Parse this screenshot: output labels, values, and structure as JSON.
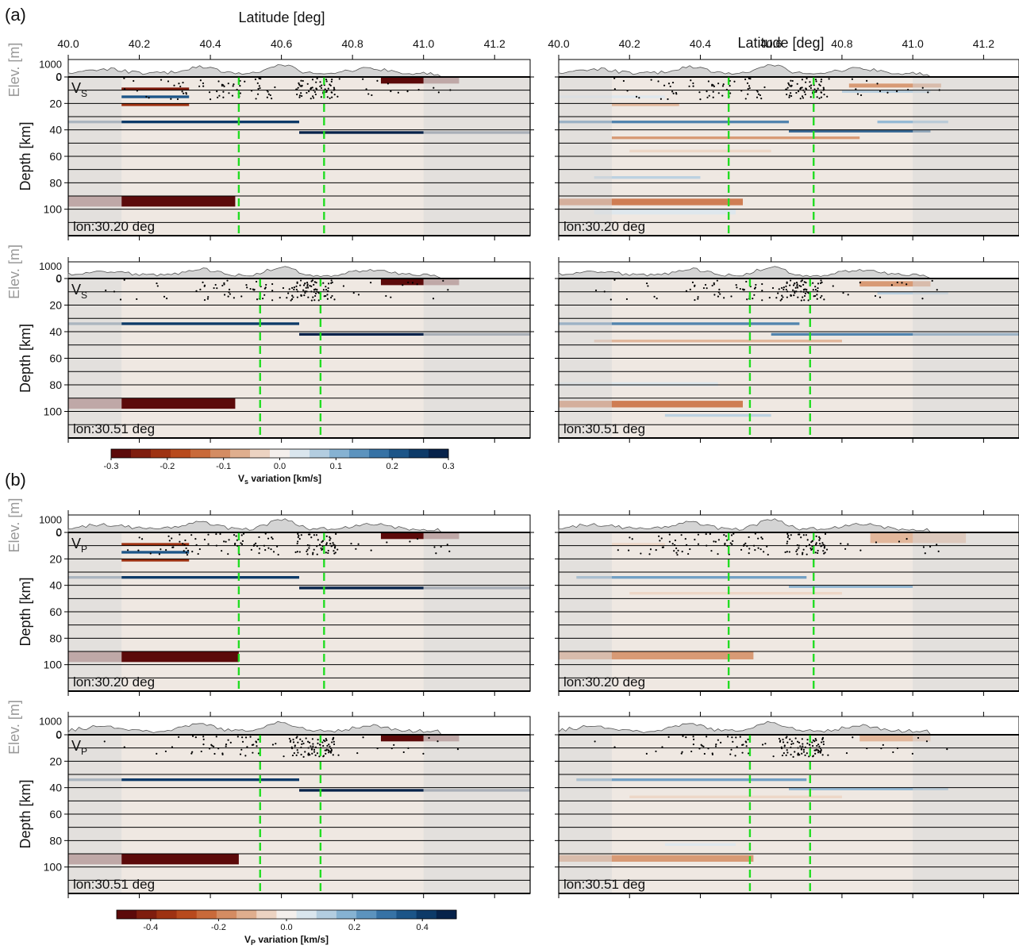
{
  "labels": {
    "panel_a": "(a)",
    "panel_b": "(b)",
    "x_axis_title": "Latitude [deg]",
    "depth_axis_title": "Depth [km]",
    "elev_axis_title": "Elev. [m]"
  },
  "chart_data": {
    "type": "heatmap",
    "x_axis": {
      "label": "Latitude [deg]",
      "range": [
        40.0,
        41.3
      ],
      "ticks": [
        "40.0",
        "40.2",
        "40.4",
        "40.6",
        "40.8",
        "41.0",
        "41.2"
      ]
    },
    "depth_axis": {
      "label": "Depth [km]",
      "range": [
        0,
        120
      ],
      "ticks": [
        "0",
        "20",
        "40",
        "60",
        "80",
        "100"
      ]
    },
    "elevation_axis": {
      "label": "Elev. [m]",
      "ticks": [
        "1000",
        "0"
      ]
    },
    "layer_interfaces_km": [
      10,
      20,
      30,
      40,
      50,
      60,
      70,
      80,
      90,
      100,
      110,
      120
    ],
    "colorbars": [
      {
        "parameter": "Vs",
        "label_main": "V",
        "label_sub": "s",
        "label_rest": " variation [km/s]",
        "range": [
          -0.3,
          0.3
        ],
        "ticks": [
          "-0.3",
          "-0.2",
          "-0.1",
          "0.0",
          "0.1",
          "0.2",
          "0.3"
        ]
      },
      {
        "parameter": "Vp",
        "label_main": "V",
        "label_sub": "P",
        "label_rest": " variation [km/s]",
        "range": [
          -0.5,
          0.5
        ],
        "ticks": [
          "-0.4",
          "-0.2",
          "0.0",
          "0.2",
          "0.4"
        ]
      }
    ],
    "panels": [
      {
        "group": "(a)",
        "parameter_main": "V",
        "parameter_sub": "S",
        "profile": "lon:30.20 deg",
        "fault_lines_lat": [
          40.48,
          40.72
        ],
        "true_model": [
          {
            "depth": [
              8,
              10
            ],
            "lat": [
              40.15,
              40.34
            ],
            "value": -0.25
          },
          {
            "depth": [
              14,
              16
            ],
            "lat": [
              40.15,
              40.34
            ],
            "value": 0.22
          },
          {
            "depth": [
              20,
              22
            ],
            "lat": [
              40.15,
              40.34
            ],
            "value": -0.22
          },
          {
            "depth": [
              0,
              5
            ],
            "lat": [
              40.88,
              41.0
            ],
            "value": -0.3
          },
          {
            "depth": [
              0,
              5
            ],
            "lat": [
              41.0,
              41.1
            ],
            "value": -0.3,
            "faded": true
          },
          {
            "depth": [
              33,
              35
            ],
            "lat": [
              40.15,
              40.65
            ],
            "value": 0.25
          },
          {
            "depth": [
              41,
              43
            ],
            "lat": [
              40.65,
              41.0
            ],
            "value": 0.3
          },
          {
            "depth": [
              33,
              35
            ],
            "lat": [
              40.0,
              40.15
            ],
            "value": 0.25,
            "faded": true
          },
          {
            "depth": [
              41,
              43
            ],
            "lat": [
              41.0,
              41.3
            ],
            "value": 0.3,
            "faded": true
          },
          {
            "depth": [
              90,
              98
            ],
            "lat": [
              40.15,
              40.47
            ],
            "value": -0.3
          },
          {
            "depth": [
              90,
              98
            ],
            "lat": [
              40.0,
              40.15
            ],
            "value": -0.3,
            "faded": true
          }
        ],
        "recovered_model": [
          {
            "depth": [
              5,
              8
            ],
            "lat": [
              40.82,
              41.08
            ],
            "value": -0.12
          },
          {
            "depth": [
              10,
              12
            ],
            "lat": [
              40.8,
              41.05
            ],
            "value": 0.08
          },
          {
            "depth": [
              14,
              16
            ],
            "lat": [
              40.0,
              40.3
            ],
            "value": 0.05
          },
          {
            "depth": [
              20,
              22
            ],
            "lat": [
              40.15,
              40.34
            ],
            "value": -0.08
          },
          {
            "depth": [
              33,
              35
            ],
            "lat": [
              40.0,
              40.65
            ],
            "value": 0.2
          },
          {
            "depth": [
              33,
              35
            ],
            "lat": [
              40.9,
              41.1
            ],
            "value": 0.1
          },
          {
            "depth": [
              40,
              42
            ],
            "lat": [
              40.65,
              41.05
            ],
            "value": 0.22
          },
          {
            "depth": [
              45,
              47
            ],
            "lat": [
              40.15,
              40.85
            ],
            "value": -0.1
          },
          {
            "depth": [
              55,
              57
            ],
            "lat": [
              40.2,
              40.6
            ],
            "value": -0.05
          },
          {
            "depth": [
              75,
              77
            ],
            "lat": [
              40.1,
              40.4
            ],
            "value": 0.06
          },
          {
            "depth": [
              92,
              97
            ],
            "lat": [
              40.0,
              40.52
            ],
            "value": -0.15
          },
          {
            "depth": [
              100,
              104
            ],
            "lat": [
              40.1,
              40.5
            ],
            "value": 0.04
          }
        ]
      },
      {
        "group": "(a)",
        "parameter_main": "V",
        "parameter_sub": "S",
        "profile": "lon:30.51 deg",
        "fault_lines_lat": [
          40.54,
          40.71
        ],
        "true_model": [
          {
            "depth": [
              0,
              5
            ],
            "lat": [
              40.88,
              41.0
            ],
            "value": -0.3
          },
          {
            "depth": [
              0,
              5
            ],
            "lat": [
              41.0,
              41.1
            ],
            "value": -0.3,
            "faded": true
          },
          {
            "depth": [
              33,
              35
            ],
            "lat": [
              40.15,
              40.65
            ],
            "value": 0.25
          },
          {
            "depth": [
              41,
              43
            ],
            "lat": [
              40.65,
              41.0
            ],
            "value": 0.3
          },
          {
            "depth": [
              33,
              35
            ],
            "lat": [
              40.0,
              40.15
            ],
            "value": 0.25,
            "faded": true
          },
          {
            "depth": [
              41,
              43
            ],
            "lat": [
              41.0,
              41.3
            ],
            "value": 0.3,
            "faded": true
          },
          {
            "depth": [
              90,
              98
            ],
            "lat": [
              40.15,
              40.47
            ],
            "value": -0.3
          },
          {
            "depth": [
              90,
              98
            ],
            "lat": [
              40.0,
              40.15
            ],
            "value": -0.3,
            "faded": true
          }
        ],
        "recovered_model": [
          {
            "depth": [
              2,
              6
            ],
            "lat": [
              40.85,
              41.05
            ],
            "value": -0.1
          },
          {
            "depth": [
              10,
              12
            ],
            "lat": [
              40.9,
              41.1
            ],
            "value": 0.06
          },
          {
            "depth": [
              33,
              35
            ],
            "lat": [
              40.0,
              40.68
            ],
            "value": 0.2
          },
          {
            "depth": [
              41,
              43
            ],
            "lat": [
              40.6,
              41.3
            ],
            "value": 0.18
          },
          {
            "depth": [
              46,
              48
            ],
            "lat": [
              40.1,
              40.8
            ],
            "value": -0.08
          },
          {
            "depth": [
              78,
              81
            ],
            "lat": [
              40.0,
              40.45
            ],
            "value": 0.05
          },
          {
            "depth": [
              92,
              97
            ],
            "lat": [
              40.0,
              40.52
            ],
            "value": -0.14
          },
          {
            "depth": [
              102,
              104
            ],
            "lat": [
              40.3,
              40.6
            ],
            "value": 0.06
          }
        ]
      },
      {
        "group": "(b)",
        "parameter_main": "V",
        "parameter_sub": "P",
        "profile": "lon:30.20 deg",
        "fault_lines_lat": [
          40.48,
          40.72
        ],
        "true_model": [
          {
            "depth": [
              8,
              10
            ],
            "lat": [
              40.15,
              40.34
            ],
            "value": -0.4
          },
          {
            "depth": [
              14,
              16
            ],
            "lat": [
              40.15,
              40.34
            ],
            "value": 0.35
          },
          {
            "depth": [
              20,
              22
            ],
            "lat": [
              40.15,
              40.34
            ],
            "value": -0.35
          },
          {
            "depth": [
              0,
              5
            ],
            "lat": [
              40.88,
              41.0
            ],
            "value": -0.5
          },
          {
            "depth": [
              0,
              5
            ],
            "lat": [
              41.0,
              41.1
            ],
            "value": -0.5,
            "faded": true
          },
          {
            "depth": [
              33,
              35
            ],
            "lat": [
              40.15,
              40.65
            ],
            "value": 0.45
          },
          {
            "depth": [
              41,
              43
            ],
            "lat": [
              40.65,
              41.0
            ],
            "value": 0.5
          },
          {
            "depth": [
              33,
              35
            ],
            "lat": [
              40.0,
              40.15
            ],
            "value": 0.45,
            "faded": true
          },
          {
            "depth": [
              41,
              43
            ],
            "lat": [
              41.0,
              41.3
            ],
            "value": 0.5,
            "faded": true
          },
          {
            "depth": [
              90,
              98
            ],
            "lat": [
              40.15,
              40.48
            ],
            "value": -0.5
          },
          {
            "depth": [
              90,
              98
            ],
            "lat": [
              40.0,
              40.15
            ],
            "value": -0.5,
            "faded": true
          }
        ],
        "recovered_model": [
          {
            "depth": [
              0,
              8
            ],
            "lat": [
              40.88,
              41.15
            ],
            "value": -0.12
          },
          {
            "depth": [
              8,
              10
            ],
            "lat": [
              40.15,
              40.3
            ],
            "value": -0.06
          },
          {
            "depth": [
              33,
              35
            ],
            "lat": [
              40.05,
              40.7
            ],
            "value": 0.22
          },
          {
            "depth": [
              40,
              42
            ],
            "lat": [
              40.65,
              41.0
            ],
            "value": 0.18
          },
          {
            "depth": [
              45,
              47
            ],
            "lat": [
              40.2,
              40.8
            ],
            "value": -0.06
          },
          {
            "depth": [
              90,
              96
            ],
            "lat": [
              40.0,
              40.55
            ],
            "value": -0.16
          }
        ]
      },
      {
        "group": "(b)",
        "parameter_main": "V",
        "parameter_sub": "P",
        "profile": "lon:30.51 deg",
        "fault_lines_lat": [
          40.54,
          40.71
        ],
        "true_model": [
          {
            "depth": [
              0,
              5
            ],
            "lat": [
              40.88,
              41.0
            ],
            "value": -0.5
          },
          {
            "depth": [
              0,
              5
            ],
            "lat": [
              41.0,
              41.1
            ],
            "value": -0.5,
            "faded": true
          },
          {
            "depth": [
              33,
              35
            ],
            "lat": [
              40.15,
              40.65
            ],
            "value": 0.45
          },
          {
            "depth": [
              41,
              43
            ],
            "lat": [
              40.65,
              41.0
            ],
            "value": 0.5
          },
          {
            "depth": [
              33,
              35
            ],
            "lat": [
              40.0,
              40.15
            ],
            "value": 0.45,
            "faded": true
          },
          {
            "depth": [
              41,
              43
            ],
            "lat": [
              41.0,
              41.3
            ],
            "value": 0.5,
            "faded": true
          },
          {
            "depth": [
              90,
              98
            ],
            "lat": [
              40.15,
              40.48
            ],
            "value": -0.5
          },
          {
            "depth": [
              90,
              98
            ],
            "lat": [
              40.0,
              40.15
            ],
            "value": -0.5,
            "faded": true
          }
        ],
        "recovered_model": [
          {
            "depth": [
              0,
              5
            ],
            "lat": [
              40.85,
              41.05
            ],
            "value": -0.1
          },
          {
            "depth": [
              33,
              35
            ],
            "lat": [
              40.05,
              40.7
            ],
            "value": 0.22
          },
          {
            "depth": [
              40,
              42
            ],
            "lat": [
              40.65,
              41.1
            ],
            "value": 0.16
          },
          {
            "depth": [
              46,
              48
            ],
            "lat": [
              40.2,
              40.8
            ],
            "value": -0.06
          },
          {
            "depth": [
              82,
              84
            ],
            "lat": [
              40.3,
              40.5
            ],
            "value": 0.08
          },
          {
            "depth": [
              91,
              96
            ],
            "lat": [
              40.0,
              40.55
            ],
            "value": -0.16
          }
        ]
      }
    ]
  },
  "colors": {
    "background_fill": "#efe8e2",
    "faded_overlay": "#d9d9d9",
    "fault_line": "#22dd22",
    "elevation_fill": "#d4d4d4",
    "colormap": [
      "#5c0a0a",
      "#7f1d0e",
      "#9e3212",
      "#b84a1d",
      "#c96a3a",
      "#d48c62",
      "#dfae8e",
      "#ecd3c2",
      "#f4efec",
      "#dae6ee",
      "#b3cde0",
      "#86b2d2",
      "#5c93be",
      "#3672a5",
      "#1c5588",
      "#0d3a68",
      "#06224a"
    ]
  }
}
